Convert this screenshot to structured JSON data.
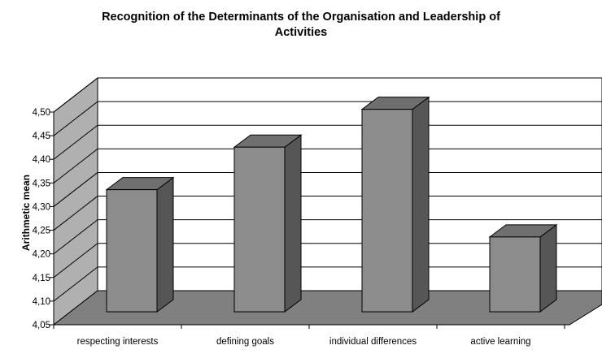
{
  "chart_data": {
    "type": "bar",
    "title_lines": [
      "Recognition of the Determinants of the Organisation and Leadership of",
      "Activities"
    ],
    "ylabel": "Arithmetic mean",
    "xlabel": "",
    "categories": [
      "respecting interests",
      "defining goals",
      "individual differences",
      "active learning"
    ],
    "values": [
      4.31,
      4.4,
      4.48,
      4.21
    ],
    "ylim": [
      4.05,
      4.5
    ],
    "yticks": [
      "4,05",
      "4,10",
      "4,15",
      "4,20",
      "4,25",
      "4,30",
      "4,35",
      "4,40",
      "4,45",
      "4,50"
    ],
    "grid": true,
    "three_d": true,
    "colors": {
      "bar_front": "#8c8c8c",
      "bar_top": "#6f6f6f",
      "bar_side": "#565656",
      "floor": "#808080",
      "back_wall": "#ffffff",
      "side_wall": "#b0b0b0"
    }
  }
}
